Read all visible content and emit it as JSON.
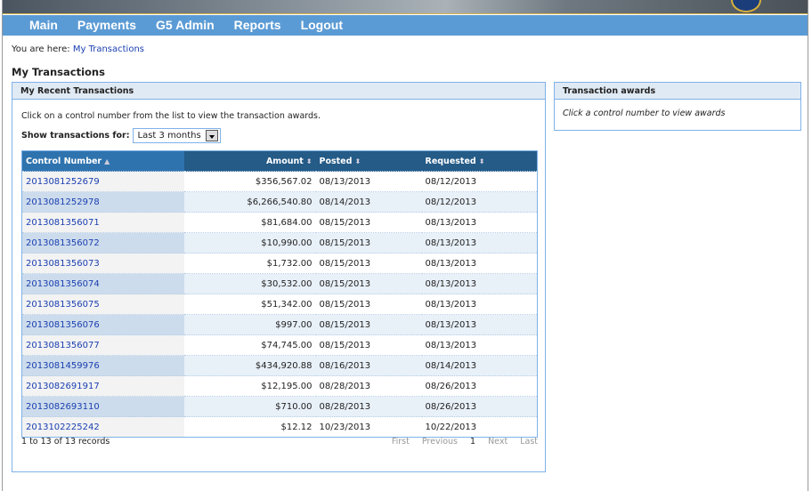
{
  "nav": [
    "Main",
    "Payments",
    "G5 Admin",
    "Reports",
    "Logout"
  ],
  "breadcrumb": {
    "prefix": "You are here:",
    "current": "My Transactions"
  },
  "page_title": "My Transactions",
  "left_panel": {
    "title": "My Recent Transactions",
    "intro": "Click on a control number from the list to view the transaction awards.",
    "filter_label": "Show transactions for:",
    "filter_value": "Last 3 months"
  },
  "right_panel": {
    "title": "Transaction awards",
    "body": "Click a control number to view awards"
  },
  "table": {
    "headers": [
      "Control Number",
      "Amount",
      "Posted",
      "Requested"
    ],
    "rows": [
      [
        "2013081252679",
        "$356,567.02",
        "08/13/2013",
        "08/12/2013"
      ],
      [
        "2013081252978",
        "$6,266,540.80",
        "08/14/2013",
        "08/12/2013"
      ],
      [
        "2013081356071",
        "$81,684.00",
        "08/15/2013",
        "08/13/2013"
      ],
      [
        "2013081356072",
        "$10,990.00",
        "08/15/2013",
        "08/13/2013"
      ],
      [
        "2013081356073",
        "$1,732.00",
        "08/15/2013",
        "08/13/2013"
      ],
      [
        "2013081356074",
        "$30,532.00",
        "08/15/2013",
        "08/13/2013"
      ],
      [
        "2013081356075",
        "$51,342.00",
        "08/15/2013",
        "08/13/2013"
      ],
      [
        "2013081356076",
        "$997.00",
        "08/15/2013",
        "08/13/2013"
      ],
      [
        "2013081356077",
        "$74,745.00",
        "08/15/2013",
        "08/13/2013"
      ],
      [
        "2013081459976",
        "$434,920.88",
        "08/16/2013",
        "08/14/2013"
      ],
      [
        "2013082691917",
        "$12,195.00",
        "08/28/2013",
        "08/26/2013"
      ],
      [
        "2013082693110",
        "$710.00",
        "08/28/2013",
        "08/26/2013"
      ],
      [
        "2013102225242",
        "$12.12",
        "10/23/2013",
        "10/22/2013"
      ]
    ]
  },
  "footer": {
    "records": "1 to 13 of 13 records",
    "pager": [
      "First",
      "Previous",
      "1",
      "Next",
      "Last"
    ]
  }
}
